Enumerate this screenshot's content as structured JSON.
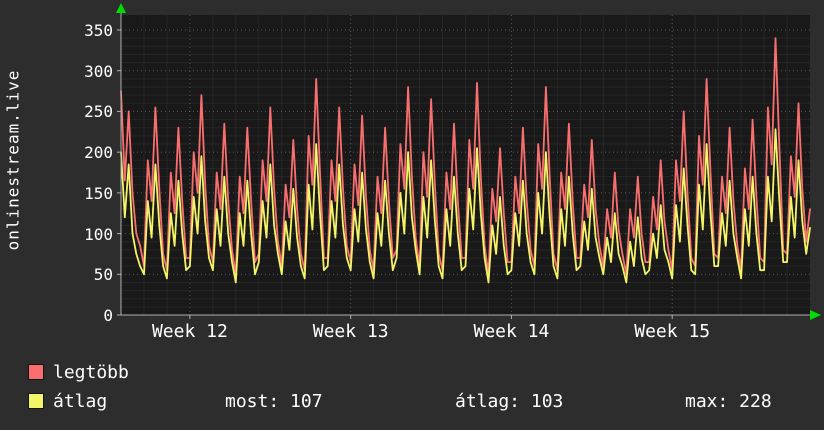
{
  "title": "onlinestream.live",
  "colors": {
    "background": "#2d2d2d",
    "plot_background": "#191919",
    "text": "#ffffff",
    "axis": "#b0b0b0",
    "grid_major": "rgba(255,255,255,0.28)",
    "grid_minor": "rgba(255,255,255,0.06)",
    "arrow": "#00dd00",
    "series_max": "#f96f6f",
    "series_avg": "#f4f468"
  },
  "legend": [
    {
      "label": "legtöbb",
      "color": "#f96f6f"
    },
    {
      "label": "átlag",
      "color": "#f4f468"
    }
  ],
  "stats": [
    {
      "name": "most",
      "value": 107,
      "text": "most: 107"
    },
    {
      "name": "átlag",
      "value": 103,
      "text": "átlag: 103"
    },
    {
      "name": "max",
      "value": 228,
      "text": "max: 228"
    }
  ],
  "chart_data": {
    "type": "line",
    "title": "onlinestream.live",
    "xlabel": "",
    "ylabel": "",
    "ylim": [
      0,
      350
    ],
    "ytick_step_major": 50,
    "ytick_step_minor": 10,
    "grid": true,
    "legend_position": "bottom-left",
    "x_tick_labels": [
      "Week 12",
      "Week 13",
      "Week 14",
      "Week 15"
    ],
    "x_tick_days": [
      3,
      10,
      17,
      24
    ],
    "days_total": 30,
    "points_per_day": 6,
    "series": [
      {
        "name": "legtöbb",
        "color": "#f96f6f",
        "values": [
          275,
          165,
          250,
          150,
          100,
          85,
          60,
          190,
          140,
          255,
          155,
          75,
          55,
          175,
          125,
          230,
          140,
          70,
          70,
          200,
          150,
          270,
          160,
          85,
          65,
          175,
          130,
          235,
          140,
          80,
          50,
          170,
          125,
          230,
          140,
          65,
          75,
          190,
          140,
          255,
          155,
          90,
          60,
          160,
          120,
          215,
          130,
          75,
          55,
          220,
          160,
          290,
          175,
          70,
          70,
          190,
          140,
          255,
          155,
          85,
          65,
          185,
          135,
          245,
          145,
          80,
          55,
          170,
          125,
          230,
          140,
          70,
          80,
          210,
          155,
          280,
          170,
          95,
          60,
          200,
          145,
          265,
          160,
          75,
          55,
          175,
          130,
          235,
          140,
          70,
          70,
          215,
          155,
          285,
          170,
          85,
          50,
          155,
          115,
          205,
          125,
          65,
          65,
          170,
          125,
          230,
          140,
          80,
          60,
          210,
          155,
          280,
          170,
          75,
          55,
          175,
          130,
          235,
          140,
          70,
          70,
          160,
          120,
          215,
          130,
          85,
          60,
          130,
          95,
          175,
          105,
          75,
          50,
          130,
          95,
          170,
          100,
          65,
          65,
          145,
          105,
          190,
          115,
          80,
          55,
          190,
          140,
          250,
          150,
          70,
          60,
          220,
          160,
          290,
          175,
          75,
          70,
          170,
          125,
          230,
          140,
          85,
          55,
          180,
          130,
          240,
          145,
          70,
          65,
          255,
          185,
          340,
          205,
          80,
          75,
          195,
          145,
          260,
          155,
          90,
          130
        ]
      },
      {
        "name": "átlag",
        "color": "#f4f468",
        "values": [
          200,
          120,
          185,
          100,
          75,
          60,
          50,
          140,
          95,
          185,
          110,
          60,
          45,
          125,
          85,
          165,
          100,
          55,
          60,
          145,
          100,
          195,
          115,
          70,
          55,
          130,
          85,
          170,
          100,
          65,
          40,
          125,
          85,
          165,
          100,
          50,
          65,
          140,
          95,
          185,
          110,
          75,
          50,
          115,
          80,
          155,
          95,
          60,
          45,
          160,
          105,
          210,
          125,
          55,
          60,
          140,
          95,
          185,
          110,
          70,
          55,
          130,
          90,
          175,
          105,
          65,
          45,
          125,
          85,
          165,
          100,
          55,
          70,
          150,
          100,
          200,
          120,
          80,
          50,
          145,
          95,
          190,
          115,
          60,
          45,
          130,
          85,
          170,
          100,
          55,
          60,
          155,
          105,
          205,
          125,
          70,
          40,
          110,
          75,
          145,
          85,
          50,
          55,
          125,
          85,
          165,
          100,
          65,
          50,
          150,
          100,
          200,
          120,
          60,
          45,
          130,
          85,
          170,
          100,
          55,
          60,
          115,
          80,
          155,
          95,
          70,
          50,
          95,
          65,
          125,
          75,
          60,
          40,
          90,
          60,
          120,
          70,
          50,
          55,
          100,
          70,
          135,
          80,
          65,
          45,
          135,
          90,
          180,
          110,
          55,
          50,
          160,
          105,
          210,
          125,
          60,
          60,
          125,
          85,
          165,
          100,
          70,
          45,
          130,
          85,
          170,
          100,
          55,
          55,
          170,
          115,
          228,
          140,
          65,
          65,
          145,
          95,
          190,
          115,
          75,
          107
        ]
      }
    ]
  }
}
